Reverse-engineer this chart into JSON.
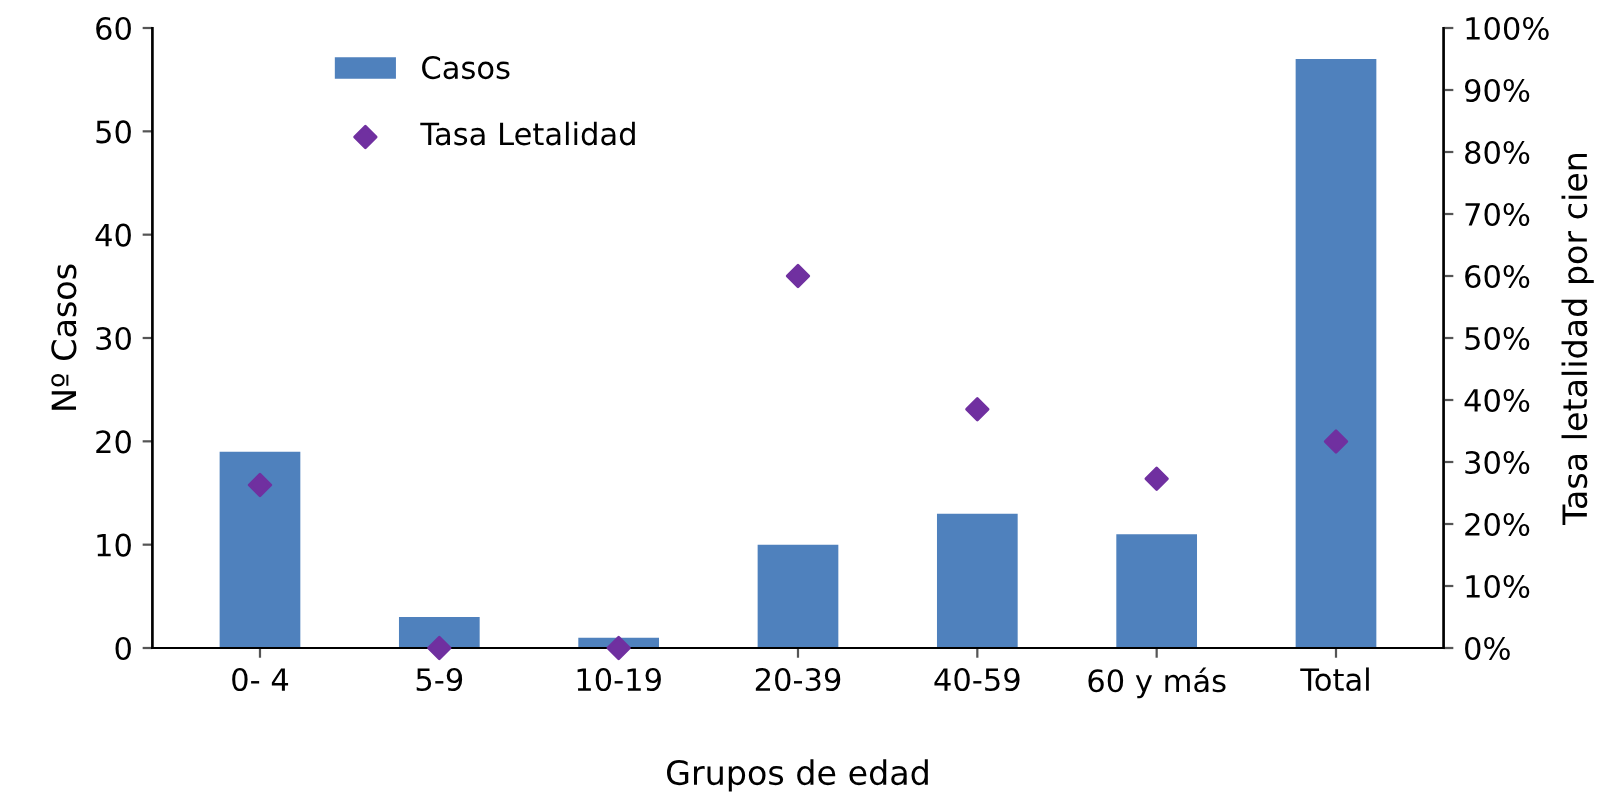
{
  "chart_data": {
    "type": "bar",
    "xlabel": "Grupos de edad",
    "ylabel": "Nº Casos",
    "y2label": "Tasa letalidad por cien",
    "categories": [
      "0- 4",
      "5-9",
      "10-19",
      "20-39",
      "40-59",
      "60 y más",
      "Total"
    ],
    "series": [
      {
        "name": "Casos",
        "color": "#4f81bd",
        "values": [
          19,
          3,
          1,
          10,
          13,
          11,
          57
        ]
      },
      {
        "name": "Tasa Letalidad",
        "type": "scatter",
        "axis": "y2",
        "color": "#7030a0",
        "marker": "diamond",
        "values": [
          26.3,
          0,
          0,
          60,
          38.5,
          27.3,
          33.3
        ]
      }
    ],
    "ylim": [
      0,
      60
    ],
    "yticks": [
      0,
      10,
      20,
      30,
      40,
      50,
      60
    ],
    "y2lim": [
      0,
      100
    ],
    "y2ticks": [
      {
        "value": 0,
        "label": "0%"
      },
      {
        "value": 10,
        "label": "10%"
      },
      {
        "value": 20,
        "label": "20%"
      },
      {
        "value": 30,
        "label": "30%"
      },
      {
        "value": 40,
        "label": "40%"
      },
      {
        "value": 50,
        "label": "50%"
      },
      {
        "value": 60,
        "label": "60%"
      },
      {
        "value": 70,
        "label": "70%"
      },
      {
        "value": 80,
        "label": "80%"
      },
      {
        "value": 90,
        "label": "90%"
      },
      {
        "value": 100,
        "label": "100%"
      }
    ],
    "grid": false,
    "legend": "top left"
  }
}
